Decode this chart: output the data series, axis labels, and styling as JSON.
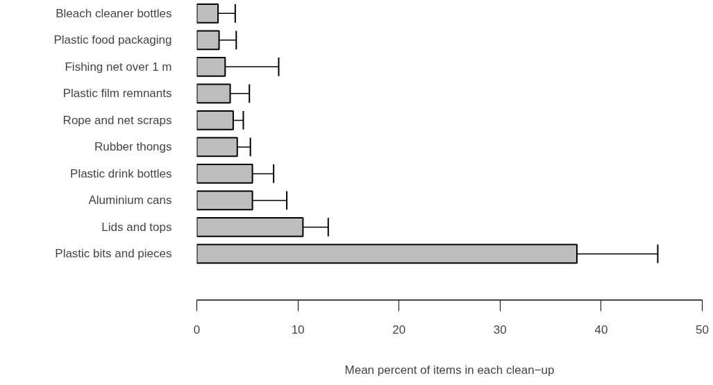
{
  "chart_data": {
    "type": "bar",
    "orientation": "horizontal",
    "xlabel": "Mean percent of items in each clean−up",
    "categories": [
      "Bleach cleaner bottles",
      "Plastic food packaging",
      "Fishing net over 1 m",
      "Plastic film remnants",
      "Rope and net scraps",
      "Rubber thongs",
      "Plastic drink bottles",
      "Aluminium cans",
      "Lids and tops",
      "Plastic bits and pieces"
    ],
    "values": [
      2.1,
      2.2,
      2.8,
      3.3,
      3.6,
      4.0,
      5.5,
      5.5,
      10.5,
      37.6
    ],
    "errors": [
      [
        2.1,
        3.8
      ],
      [
        2.2,
        3.9
      ],
      [
        2.8,
        8.1
      ],
      [
        3.3,
        5.2
      ],
      [
        3.6,
        4.6
      ],
      [
        4.0,
        5.3
      ],
      [
        5.5,
        7.6
      ],
      [
        5.5,
        8.9
      ],
      [
        10.5,
        13.0
      ],
      [
        37.6,
        45.6
      ]
    ],
    "color": "#bebebe",
    "xlim": [
      0,
      50
    ],
    "xticks": [
      0,
      10,
      20,
      30,
      40,
      50
    ]
  }
}
